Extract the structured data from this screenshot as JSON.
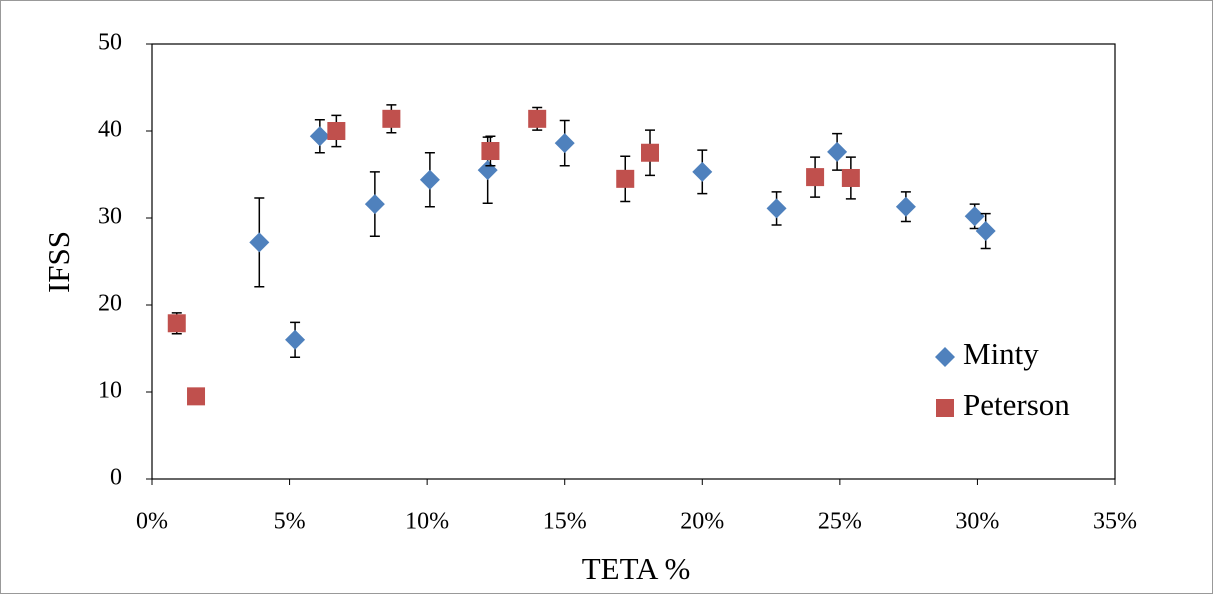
{
  "chart_data": {
    "type": "scatter",
    "xlabel": "TETA %",
    "ylabel": "IFSS",
    "xlim": [
      0,
      35
    ],
    "xticks": [
      {
        "value": 0,
        "label": "0%"
      },
      {
        "value": 5,
        "label": "5%"
      },
      {
        "value": 10,
        "label": "10%"
      },
      {
        "value": 15,
        "label": "15%"
      },
      {
        "value": 20,
        "label": "20%"
      },
      {
        "value": 25,
        "label": "25%"
      },
      {
        "value": 30,
        "label": "30%"
      },
      {
        "value": 35,
        "label": "35%"
      }
    ],
    "ylim": [
      0,
      50
    ],
    "yticks": [
      0,
      10,
      20,
      30,
      40,
      50
    ],
    "legend": "right",
    "series": [
      {
        "name": "Minty",
        "color": "#4f81bd",
        "marker": "diamond",
        "x": [
          3.9,
          5.2,
          6.1,
          8.1,
          10.1,
          12.2,
          15.0,
          20.0,
          22.7,
          24.9,
          27.4,
          29.9,
          30.3
        ],
        "values": [
          27.2,
          16.0,
          39.4,
          31.6,
          34.4,
          35.5,
          38.6,
          35.3,
          31.1,
          37.6,
          31.3,
          30.2,
          28.5
        ],
        "errors": [
          5.1,
          2.0,
          1.9,
          3.7,
          3.1,
          3.8,
          2.6,
          2.5,
          1.9,
          2.1,
          1.7,
          1.4,
          2.0
        ]
      },
      {
        "name": "Peterson",
        "color": "#c0504d",
        "marker": "square",
        "x": [
          0.9,
          1.6,
          6.7,
          8.7,
          12.3,
          14.0,
          17.2,
          18.1,
          24.1,
          25.4
        ],
        "values": [
          17.9,
          9.5,
          40.0,
          41.4,
          37.7,
          41.4,
          34.5,
          37.5,
          34.7,
          34.6
        ],
        "errors": [
          1.2,
          0.3,
          1.8,
          1.6,
          1.7,
          1.3,
          2.6,
          2.6,
          2.3,
          2.4
        ]
      }
    ]
  }
}
